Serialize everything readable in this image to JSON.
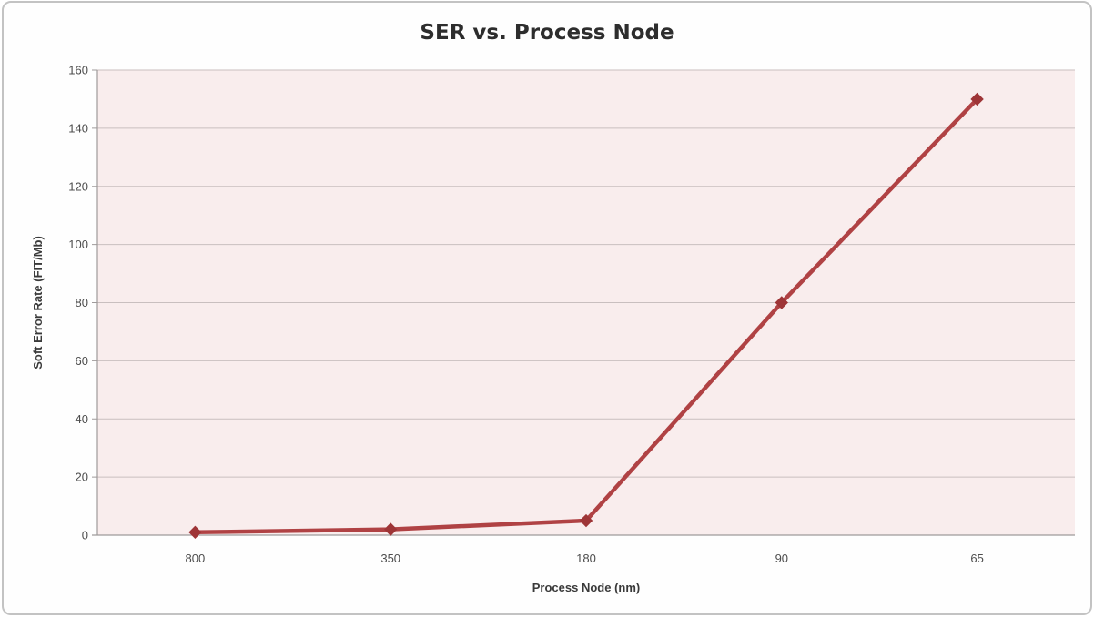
{
  "chart_data": {
    "type": "line",
    "title": "SER vs. Process Node",
    "categories": [
      "800",
      "350",
      "180",
      "90",
      "65"
    ],
    "values": [
      1,
      2,
      5,
      80,
      150
    ],
    "xlabel": "Process Node (nm)",
    "ylabel": "Soft Error Rate (FIT/Mb)",
    "ylim": [
      0,
      160
    ],
    "yticks": [
      0,
      20,
      40,
      60,
      80,
      100,
      120,
      140,
      160
    ],
    "grid": "horizontal",
    "legend_position": "none",
    "marker": "diamond",
    "colors": {
      "line": "#b04244",
      "marker": "#9e3537",
      "plot_background": "#f9eded",
      "gridline": "#c9bfbf",
      "axis_line": "#9f9a9a",
      "title_text": "#2d2d2d",
      "tick_text": "#4d4d4d"
    }
  }
}
